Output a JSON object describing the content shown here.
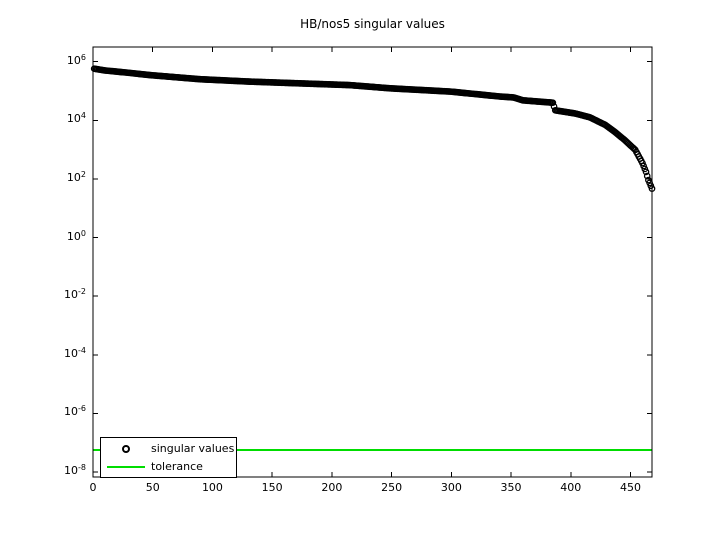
{
  "figure": {
    "background": "#ffffff",
    "axis_color": "#000000"
  },
  "chart_data": {
    "type": "scatter",
    "title": "HB/nos5 singular values",
    "xlabel": "",
    "ylabel": "",
    "grid": false,
    "y_scale": "log10",
    "xlim": [
      0,
      468
    ],
    "ylim_log10": [
      -8.17,
      6.5
    ],
    "x_ticks": [
      0,
      50,
      100,
      150,
      200,
      250,
      300,
      350,
      400,
      450
    ],
    "x_tick_labels": [
      "0",
      "50",
      "100",
      "150",
      "200",
      "250",
      "300",
      "350",
      "400",
      "450"
    ],
    "y_tick_exponents": [
      6,
      4,
      2,
      0,
      -2,
      -4,
      -6,
      -8
    ],
    "n_points": 468,
    "series": [
      {
        "name": "singular values",
        "type": "scatter",
        "marker": "circle",
        "color": "#000000",
        "anchors_index_log10value": [
          [
            1,
            5.76
          ],
          [
            10,
            5.7
          ],
          [
            30,
            5.62
          ],
          [
            48,
            5.54
          ],
          [
            90,
            5.4
          ],
          [
            131,
            5.32
          ],
          [
            173,
            5.26
          ],
          [
            215,
            5.2
          ],
          [
            249,
            5.09
          ],
          [
            299,
            4.98
          ],
          [
            341,
            4.81
          ],
          [
            352,
            4.78
          ],
          [
            360,
            4.68
          ],
          [
            385,
            4.6
          ],
          [
            387,
            4.34
          ],
          [
            404,
            4.23
          ],
          [
            416,
            4.1
          ],
          [
            429,
            3.84
          ],
          [
            437,
            3.6
          ],
          [
            445,
            3.33
          ],
          [
            454,
            2.99
          ],
          [
            460,
            2.54
          ],
          [
            463,
            2.24
          ],
          [
            465,
            1.96
          ],
          [
            468,
            1.67
          ]
        ]
      },
      {
        "name": "tolerance",
        "type": "hline",
        "color": "#00dd00",
        "y_log10": -7.25
      }
    ],
    "legend": {
      "position": "southwest",
      "entries": [
        "singular values",
        "tolerance"
      ]
    }
  }
}
